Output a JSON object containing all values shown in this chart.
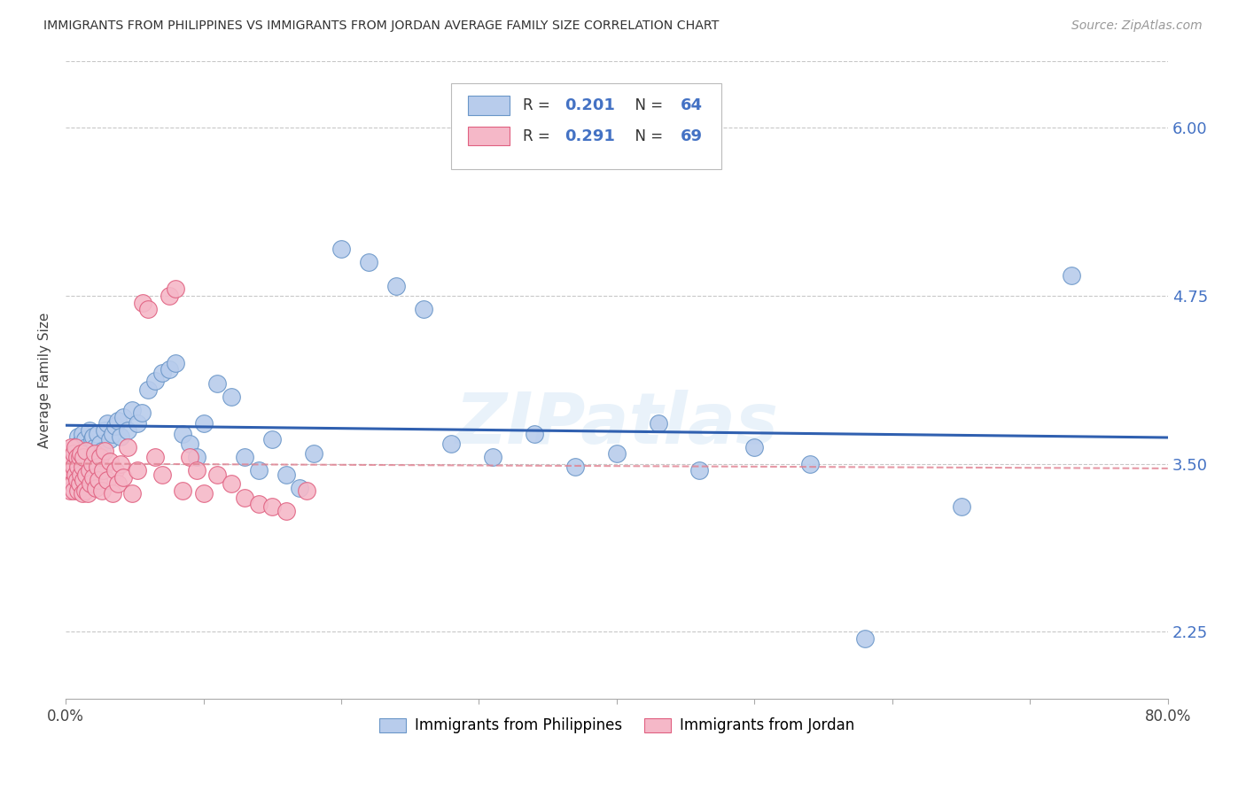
{
  "title": "IMMIGRANTS FROM PHILIPPINES VS IMMIGRANTS FROM JORDAN AVERAGE FAMILY SIZE CORRELATION CHART",
  "source": "Source: ZipAtlas.com",
  "ylabel": "Average Family Size",
  "xlim": [
    0.0,
    0.8
  ],
  "ylim": [
    1.75,
    6.5
  ],
  "yticks": [
    2.25,
    3.5,
    4.75,
    6.0
  ],
  "xticks": [
    0.0,
    0.1,
    0.2,
    0.3,
    0.4,
    0.5,
    0.6,
    0.7,
    0.8
  ],
  "xtick_labels": [
    "0.0%",
    "",
    "",
    "",
    "",
    "",
    "",
    "",
    "80.0%"
  ],
  "background_color": "#ffffff",
  "ytick_color": "#4472c4",
  "grid_color": "#c8c8c8",
  "watermark": "ZIPatlas",
  "philippines_color": "#b8ccec",
  "philippines_edge_color": "#6a96c8",
  "jordan_color": "#f5b8c8",
  "jordan_edge_color": "#e06080",
  "philippines_line_color": "#3060b0",
  "jordan_line_color": "#e08090",
  "line_width": 2.2,
  "legend_box_philippines": "#b8ccec",
  "legend_box_jordan": "#f5b8c8",
  "legend_edge_philippines": "#6a96c8",
  "legend_edge_jordan": "#e06080",
  "philippines_R": "0.201",
  "philippines_N": "64",
  "jordan_R": "0.291",
  "jordan_N": "69",
  "philippines_x": [
    0.005,
    0.007,
    0.009,
    0.01,
    0.011,
    0.012,
    0.013,
    0.014,
    0.015,
    0.016,
    0.017,
    0.018,
    0.019,
    0.02,
    0.021,
    0.022,
    0.023,
    0.025,
    0.026,
    0.028,
    0.03,
    0.032,
    0.034,
    0.036,
    0.038,
    0.04,
    0.042,
    0.045,
    0.048,
    0.052,
    0.055,
    0.06,
    0.065,
    0.07,
    0.075,
    0.08,
    0.085,
    0.09,
    0.095,
    0.1,
    0.11,
    0.12,
    0.13,
    0.14,
    0.15,
    0.16,
    0.17,
    0.18,
    0.2,
    0.22,
    0.24,
    0.26,
    0.28,
    0.31,
    0.34,
    0.37,
    0.4,
    0.43,
    0.46,
    0.5,
    0.54,
    0.58,
    0.65,
    0.73
  ],
  "philippines_y": [
    3.6,
    3.55,
    3.7,
    3.65,
    3.55,
    3.72,
    3.58,
    3.68,
    3.62,
    3.58,
    3.75,
    3.52,
    3.68,
    3.7,
    3.62,
    3.58,
    3.72,
    3.65,
    3.6,
    3.75,
    3.8,
    3.68,
    3.72,
    3.78,
    3.82,
    3.7,
    3.85,
    3.75,
    3.9,
    3.8,
    3.88,
    4.05,
    4.12,
    4.18,
    4.2,
    4.25,
    3.72,
    3.65,
    3.55,
    3.8,
    4.1,
    4.0,
    3.55,
    3.45,
    3.68,
    3.42,
    3.32,
    3.58,
    5.1,
    5.0,
    4.82,
    4.65,
    3.65,
    3.55,
    3.72,
    3.48,
    3.58,
    3.8,
    3.45,
    3.62,
    3.5,
    2.2,
    3.18,
    4.9
  ],
  "jordan_x": [
    0.001,
    0.002,
    0.002,
    0.003,
    0.003,
    0.004,
    0.004,
    0.005,
    0.005,
    0.006,
    0.006,
    0.006,
    0.007,
    0.007,
    0.008,
    0.008,
    0.009,
    0.009,
    0.01,
    0.01,
    0.011,
    0.011,
    0.012,
    0.012,
    0.013,
    0.013,
    0.014,
    0.015,
    0.015,
    0.016,
    0.017,
    0.018,
    0.019,
    0.02,
    0.021,
    0.022,
    0.023,
    0.024,
    0.025,
    0.026,
    0.027,
    0.028,
    0.03,
    0.032,
    0.034,
    0.036,
    0.038,
    0.04,
    0.042,
    0.045,
    0.048,
    0.052,
    0.056,
    0.06,
    0.065,
    0.07,
    0.075,
    0.08,
    0.085,
    0.09,
    0.095,
    0.1,
    0.11,
    0.12,
    0.13,
    0.14,
    0.15,
    0.16,
    0.175
  ],
  "jordan_y": [
    3.55,
    3.4,
    3.6,
    3.3,
    3.5,
    3.45,
    3.62,
    3.35,
    3.52,
    3.3,
    3.48,
    3.58,
    3.42,
    3.62,
    3.38,
    3.55,
    3.3,
    3.48,
    3.35,
    3.55,
    3.42,
    3.58,
    3.28,
    3.48,
    3.38,
    3.55,
    3.3,
    3.42,
    3.6,
    3.28,
    3.45,
    3.35,
    3.5,
    3.4,
    3.58,
    3.32,
    3.48,
    3.38,
    3.55,
    3.3,
    3.45,
    3.6,
    3.38,
    3.52,
    3.28,
    3.45,
    3.35,
    3.5,
    3.4,
    3.62,
    3.28,
    3.45,
    4.7,
    4.65,
    3.55,
    3.42,
    4.75,
    4.8,
    3.3,
    3.55,
    3.45,
    3.28,
    3.42,
    3.35,
    3.25,
    3.2,
    3.18,
    3.15,
    3.3
  ]
}
